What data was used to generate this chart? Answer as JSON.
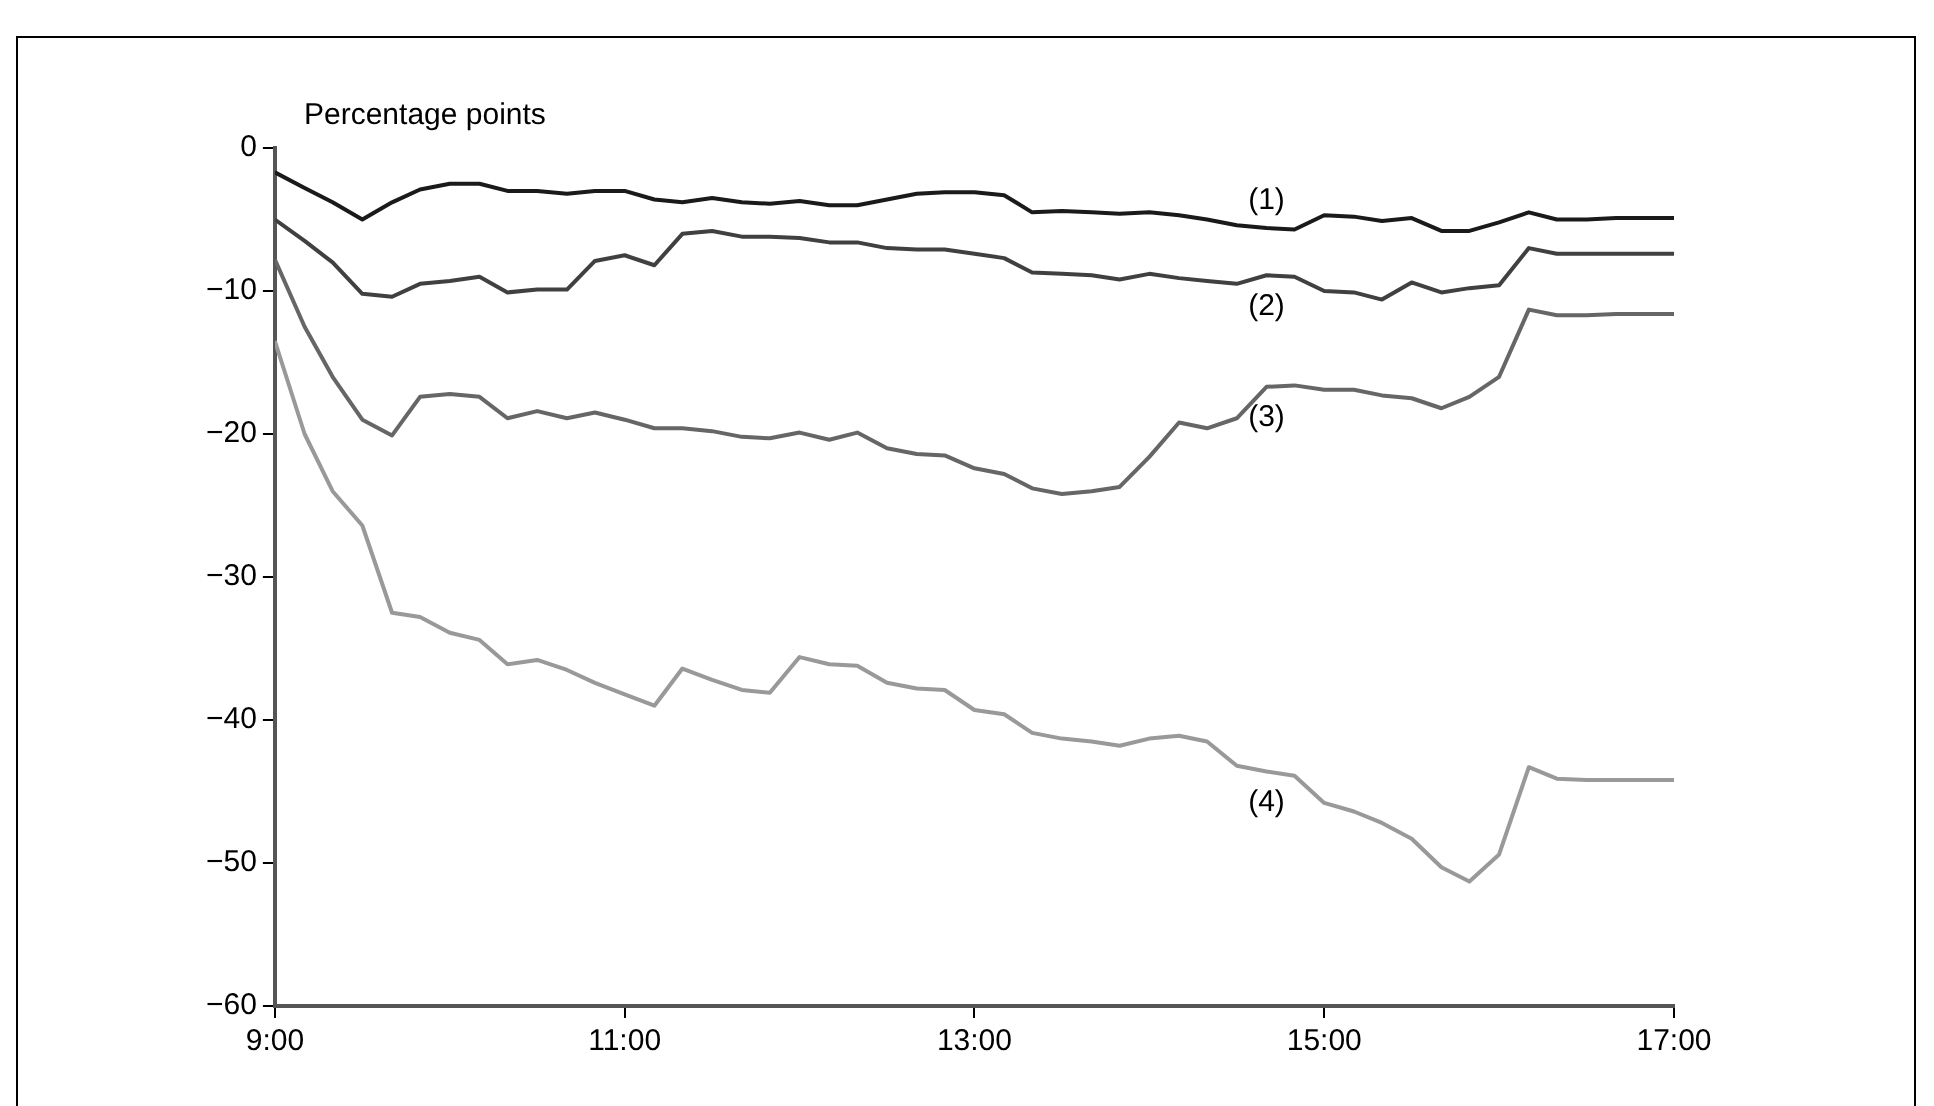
{
  "chart_data": {
    "type": "line",
    "ylabel": "Percentage points",
    "x": [
      9,
      9.17,
      9.33,
      9.5,
      9.67,
      9.83,
      10,
      10.17,
      10.33,
      10.5,
      10.67,
      10.83,
      11,
      11.17,
      11.33,
      11.5,
      11.67,
      11.83,
      12,
      12.17,
      12.33,
      12.5,
      12.67,
      12.83,
      13,
      13.17,
      13.33,
      13.5,
      13.67,
      13.83,
      14,
      14.17,
      14.33,
      14.5,
      14.67,
      14.83,
      15,
      15.17,
      15.33,
      15.5,
      15.67,
      15.83,
      16,
      16.17,
      16.33,
      16.5,
      16.67,
      16.83,
      17
    ],
    "series": [
      {
        "name": "(1)",
        "color": "#1a1a1a",
        "values": [
          -1.7,
          -2.8,
          -3.8,
          -5.0,
          -3.8,
          -2.9,
          -2.5,
          -2.5,
          -3.0,
          -3.0,
          -3.2,
          -3.0,
          -3.0,
          -3.6,
          -3.8,
          -3.5,
          -3.8,
          -3.9,
          -3.7,
          -4.0,
          -4.0,
          -3.6,
          -3.2,
          -3.1,
          -3.1,
          -3.3,
          -4.5,
          -4.4,
          -4.5,
          -4.6,
          -4.5,
          -4.7,
          -5.0,
          -5.4,
          -5.6,
          -5.7,
          -4.7,
          -4.8,
          -5.1,
          -4.9,
          -5.8,
          -5.8,
          -5.2,
          -4.5,
          -5.0,
          -5.0,
          -4.9,
          -4.9,
          -4.9
        ]
      },
      {
        "name": "(2)",
        "color": "#404040",
        "values": [
          -5.0,
          -6.5,
          -8.0,
          -10.2,
          -10.4,
          -9.5,
          -9.3,
          -9.0,
          -10.1,
          -9.9,
          -9.9,
          -7.9,
          -7.5,
          -8.2,
          -6.0,
          -5.8,
          -6.2,
          -6.2,
          -6.3,
          -6.6,
          -6.6,
          -7.0,
          -7.1,
          -7.1,
          -7.4,
          -7.7,
          -8.7,
          -8.8,
          -8.9,
          -9.2,
          -8.8,
          -9.1,
          -9.3,
          -9.5,
          -8.9,
          -9.0,
          -10.0,
          -10.1,
          -10.6,
          -9.4,
          -10.1,
          -9.8,
          -9.6,
          -7.0,
          -7.4,
          -7.4,
          -7.4,
          -7.4,
          -7.4
        ]
      },
      {
        "name": "(3)",
        "color": "#666666",
        "values": [
          -7.8,
          -12.5,
          -16.0,
          -19.0,
          -20.1,
          -17.4,
          -17.2,
          -17.4,
          -18.9,
          -18.4,
          -18.9,
          -18.5,
          -19.0,
          -19.6,
          -19.6,
          -19.8,
          -20.2,
          -20.3,
          -19.9,
          -20.4,
          -19.9,
          -21.0,
          -21.4,
          -21.5,
          -22.4,
          -22.8,
          -23.8,
          -24.2,
          -24.0,
          -23.7,
          -21.6,
          -19.2,
          -19.6,
          -18.9,
          -16.7,
          -16.6,
          -16.9,
          -16.9,
          -17.3,
          -17.5,
          -18.2,
          -17.4,
          -16.0,
          -11.3,
          -11.7,
          -11.7,
          -11.6,
          -11.6,
          -11.6
        ]
      },
      {
        "name": "(4)",
        "color": "#999999",
        "values": [
          -13.5,
          -20.0,
          -24.0,
          -26.4,
          -32.5,
          -32.8,
          -33.9,
          -34.4,
          -36.1,
          -35.8,
          -36.5,
          -37.4,
          -38.2,
          -39.0,
          -36.4,
          -37.2,
          -37.9,
          -38.1,
          -35.6,
          -36.1,
          -36.2,
          -37.4,
          -37.8,
          -37.9,
          -39.3,
          -39.6,
          -40.9,
          -41.3,
          -41.5,
          -41.8,
          -41.3,
          -41.1,
          -41.5,
          -43.2,
          -43.6,
          -43.9,
          -45.8,
          -46.4,
          -47.2,
          -48.3,
          -50.3,
          -51.3,
          -49.4,
          -43.3,
          -44.1,
          -44.2,
          -44.2,
          -44.2,
          -44.2
        ]
      }
    ],
    "xlim": [
      9,
      17
    ],
    "xticks": [
      {
        "value": 9,
        "label": "9:00"
      },
      {
        "value": 11,
        "label": "11:00"
      },
      {
        "value": 13,
        "label": "13:00"
      },
      {
        "value": 15,
        "label": "15:00"
      },
      {
        "value": 17,
        "label": "17:00"
      }
    ],
    "ylim": [
      -60,
      0
    ],
    "yticks": [
      -60,
      -50,
      -40,
      -30,
      -20,
      -10,
      0
    ],
    "grid": false,
    "legend": false,
    "marker": "none",
    "line_style": "solid"
  }
}
